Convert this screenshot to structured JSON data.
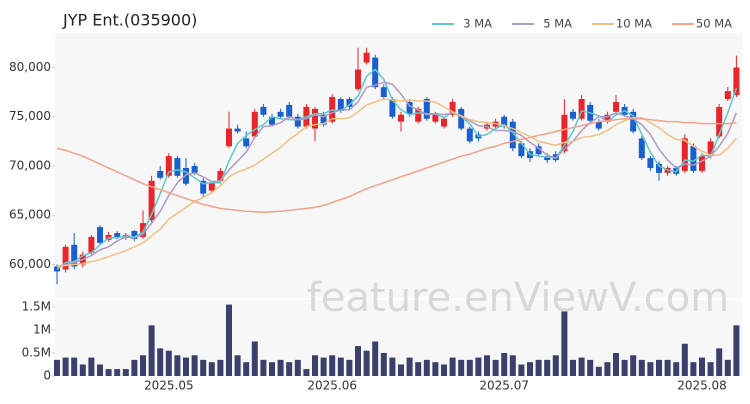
{
  "chart_data": {
    "type": "candlestick",
    "title": "JYP Ent.(035900)",
    "watermark": "feature.enViewV.com",
    "up_color": "#e8252a",
    "down_color": "#1a5fd0",
    "categories": [
      null,
      null,
      null,
      null,
      null,
      null,
      null,
      null,
      null,
      null,
      null,
      null,
      null,
      "2025.05",
      null,
      null,
      null,
      null,
      null,
      null,
      null,
      null,
      null,
      null,
      null,
      null,
      null,
      null,
      null,
      null,
      null,
      null,
      "2025.06",
      null,
      null,
      null,
      null,
      null,
      null,
      null,
      null,
      null,
      null,
      null,
      null,
      null,
      null,
      null,
      null,
      null,
      null,
      null,
      "2025.07",
      null,
      null,
      null,
      null,
      null,
      null,
      null,
      null,
      null,
      null,
      null,
      null,
      null,
      null,
      null,
      null,
      null,
      null,
      null,
      null,
      null,
      null,
      "2025.08",
      null,
      null,
      null,
      null
    ],
    "open": [
      59800,
      59500,
      62000,
      60000,
      61200,
      63800,
      62500,
      63200,
      62700,
      63400,
      62800,
      64500,
      69500,
      69000,
      70800,
      69800,
      70000,
      68500,
      67500,
      68500,
      72000,
      73800,
      72800,
      73000,
      76000,
      75000,
      75500,
      76200,
      75000,
      74000,
      73800,
      75200,
      74500,
      76800,
      76800,
      77800,
      80500,
      81000,
      78000,
      76800,
      74500,
      76500,
      74500,
      76800,
      74500,
      74000,
      75200,
      75800,
      73800,
      73200,
      73800,
      74000,
      75000,
      74500,
      72300,
      71500,
      72000,
      71000,
      71200,
      71500,
      75500,
      74800,
      76200,
      74500,
      74500,
      75500,
      76000,
      75500,
      72800,
      70800,
      70200,
      69300,
      69800,
      69500,
      72000,
      69500,
      71000,
      73000,
      76800,
      77200
    ],
    "high": [
      60000,
      62000,
      63200,
      61300,
      63000,
      64000,
      63300,
      63400,
      63200,
      63500,
      65500,
      69000,
      70000,
      71300,
      71000,
      70800,
      70300,
      68800,
      68500,
      69800,
      75500,
      74200,
      73500,
      75800,
      76300,
      75300,
      75800,
      76500,
      75300,
      76300,
      76000,
      75500,
      77300,
      77000,
      77000,
      82000,
      82000,
      81300,
      78300,
      77000,
      75500,
      76800,
      76000,
      77000,
      75500,
      75000,
      76800,
      76000,
      74000,
      73500,
      74500,
      74800,
      75200,
      74800,
      72500,
      71800,
      72300,
      71300,
      71500,
      76800,
      75800,
      77200,
      76500,
      74800,
      75500,
      77200,
      76300,
      75800,
      73000,
      71000,
      70500,
      70000,
      70000,
      73200,
      72300,
      71300,
      72800,
      76300,
      78000,
      81200
    ],
    "low": [
      58000,
      59200,
      59500,
      59700,
      61000,
      62000,
      62300,
      62600,
      62500,
      62400,
      62600,
      64300,
      68600,
      68800,
      68800,
      68000,
      69100,
      66800,
      67300,
      68300,
      71800,
      73300,
      71800,
      72800,
      75000,
      74000,
      74800,
      74800,
      73800,
      73800,
      72500,
      74000,
      74300,
      75400,
      75800,
      77600,
      80300,
      77800,
      76800,
      74800,
      73500,
      75000,
      74300,
      74600,
      74300,
      73800,
      75000,
      73600,
      72300,
      72500,
      73600,
      73800,
      73800,
      71500,
      70800,
      70400,
      71000,
      70300,
      70400,
      71300,
      74600,
      74600,
      74400,
      73600,
      74300,
      75300,
      75000,
      73300,
      70600,
      69500,
      68500,
      69000,
      69000,
      69300,
      69300,
      69300,
      70800,
      72800,
      76600,
      77000
    ],
    "close": [
      59300,
      61800,
      59800,
      61000,
      62800,
      62200,
      63000,
      62800,
      63000,
      62600,
      64200,
      68500,
      68800,
      71000,
      69000,
      68200,
      69300,
      67200,
      68300,
      69500,
      73800,
      73500,
      72000,
      75500,
      75200,
      74200,
      75000,
      75000,
      74000,
      76000,
      75800,
      74200,
      77000,
      75600,
      76000,
      79800,
      81500,
      78000,
      77000,
      75000,
      75200,
      75300,
      75800,
      74800,
      75200,
      74800,
      76500,
      73800,
      72500,
      72800,
      74200,
      74500,
      74000,
      71800,
      71000,
      70800,
      71200,
      70600,
      70600,
      75200,
      74800,
      76800,
      74600,
      73800,
      75200,
      76500,
      75200,
      73500,
      70800,
      69800,
      69300,
      69800,
      69200,
      72800,
      69500,
      71000,
      72500,
      76000,
      77600,
      80000
    ],
    "series": [
      {
        "name": "3 MA",
        "color": "#5ec8c8",
        "values": [
          59500,
          60200,
          60300,
          60900,
          61200,
          62000,
          62700,
          62700,
          62900,
          62800,
          63300,
          65100,
          67200,
          69400,
          69600,
          69400,
          68800,
          68200,
          68300,
          68300,
          70500,
          72300,
          73100,
          73700,
          74200,
          75000,
          74800,
          74700,
          74700,
          75000,
          75300,
          75300,
          75700,
          75600,
          76200,
          77100,
          79100,
          79800,
          78800,
          76700,
          75700,
          75200,
          75400,
          75300,
          75300,
          74900,
          75500,
          75000,
          74300,
          73000,
          73200,
          73800,
          74200,
          73400,
          72300,
          71200,
          71000,
          70900,
          70800,
          72100,
          73500,
          75600,
          75400,
          75100,
          74500,
          75200,
          75600,
          75100,
          73200,
          71400,
          70000,
          69600,
          69400,
          70600,
          70500,
          71100,
          71000,
          73200,
          75400,
          77900
        ]
      },
      {
        "name": "5 MA",
        "color": "#b09ac8",
        "values": [
          59800,
          60000,
          60200,
          60500,
          60900,
          61500,
          61800,
          62400,
          62800,
          62700,
          63100,
          64200,
          65400,
          67000,
          68300,
          69100,
          69300,
          68900,
          68400,
          68500,
          69600,
          70500,
          71400,
          72900,
          74000,
          74100,
          74400,
          75000,
          74700,
          74800,
          75200,
          75000,
          75400,
          75700,
          75700,
          76500,
          78000,
          78200,
          78500,
          78300,
          77300,
          76100,
          75700,
          75200,
          75300,
          75200,
          75400,
          75000,
          74600,
          74100,
          74000,
          73600,
          73600,
          73500,
          73100,
          72400,
          71800,
          71100,
          70800,
          71700,
          72500,
          73600,
          74400,
          75000,
          75000,
          75400,
          75100,
          74800,
          74200,
          73200,
          71700,
          70600,
          69800,
          70200,
          70100,
          70500,
          71000,
          72000,
          73300,
          75400
        ]
      },
      {
        "name": "10 MA",
        "color": "#f0c080",
        "values": [
          59800,
          59900,
          60000,
          60100,
          60300,
          60500,
          60800,
          61100,
          61400,
          61800,
          62200,
          62900,
          63600,
          64600,
          65200,
          65800,
          66400,
          66800,
          67300,
          68000,
          68900,
          69400,
          69700,
          70100,
          70700,
          71300,
          71900,
          72700,
          73300,
          74000,
          74200,
          74300,
          74800,
          74800,
          74900,
          75500,
          76200,
          76500,
          76800,
          76700,
          76600,
          76700,
          76600,
          76600,
          76500,
          76000,
          75500,
          75100,
          74700,
          74500,
          74400,
          74300,
          74100,
          73800,
          73400,
          73000,
          72500,
          72300,
          72100,
          72400,
          72500,
          72900,
          73000,
          73200,
          73600,
          74200,
          74600,
          74900,
          74900,
          74400,
          73900,
          73200,
          72700,
          72600,
          72000,
          71500,
          71100,
          71100,
          71800,
          72800
        ]
      },
      {
        "name": "50 MA",
        "color": "#f4a08a",
        "values": [
          71800,
          71600,
          71300,
          71000,
          70600,
          70200,
          69800,
          69400,
          69000,
          68600,
          68200,
          67900,
          67600,
          67300,
          67000,
          66700,
          66400,
          66100,
          65900,
          65700,
          65600,
          65500,
          65400,
          65350,
          65300,
          65350,
          65400,
          65500,
          65600,
          65700,
          65800,
          66000,
          66300,
          66600,
          66900,
          67300,
          67700,
          68000,
          68300,
          68600,
          68900,
          69200,
          69500,
          69800,
          70100,
          70400,
          70700,
          71000,
          71200,
          71500,
          71800,
          72000,
          72300,
          72500,
          72700,
          72900,
          73100,
          73300,
          73500,
          73700,
          73900,
          74100,
          74300,
          74500,
          74600,
          74700,
          74800,
          74800,
          74800,
          74700,
          74600,
          74500,
          74500,
          74400,
          74400,
          74300,
          74300,
          74300,
          74300,
          74400
        ]
      }
    ],
    "ylim": [
      56600,
      83500
    ],
    "yticks": [
      {
        "value": 60000,
        "label": "60,000"
      },
      {
        "value": 65000,
        "label": "65,000"
      },
      {
        "value": 70000,
        "label": "70,000"
      },
      {
        "value": 75000,
        "label": "75,000"
      },
      {
        "value": 80000,
        "label": "80,000"
      }
    ],
    "volume_color": "#3b3f6b",
    "volume": [
      350000,
      400000,
      400000,
      250000,
      400000,
      250000,
      150000,
      150000,
      150000,
      350000,
      450000,
      1100000,
      600000,
      550000,
      450000,
      400000,
      450000,
      350000,
      300000,
      350000,
      1550000,
      450000,
      300000,
      750000,
      350000,
      300000,
      350000,
      300000,
      350000,
      150000,
      450000,
      400000,
      450000,
      400000,
      350000,
      650000,
      550000,
      750000,
      500000,
      400000,
      250000,
      400000,
      300000,
      350000,
      300000,
      250000,
      400000,
      350000,
      350000,
      400000,
      450000,
      350000,
      500000,
      450000,
      250000,
      300000,
      350000,
      350000,
      450000,
      1400000,
      350000,
      400000,
      350000,
      200000,
      300000,
      500000,
      350000,
      450000,
      350000,
      300000,
      350000,
      350000,
      300000,
      700000,
      300000,
      400000,
      300000,
      600000,
      350000,
      1100000
    ],
    "volume_ylim": [
      0,
      1650000
    ],
    "volume_yticks": [
      0,
      {
        "value": 500000,
        "label": "0.5M"
      },
      {
        "value": 1000000,
        "label": "1M"
      },
      {
        "value": 1500000,
        "label": "1.5M"
      }
    ]
  }
}
